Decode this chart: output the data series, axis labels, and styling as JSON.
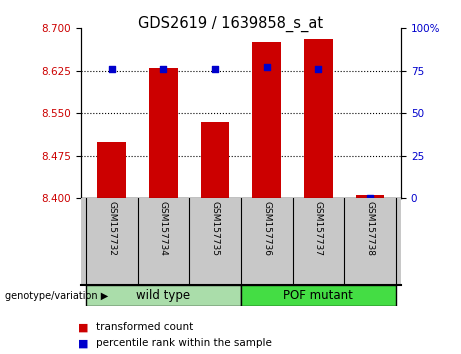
{
  "title": "GDS2619 / 1639858_s_at",
  "samples": [
    "GSM157732",
    "GSM157734",
    "GSM157735",
    "GSM157736",
    "GSM157737",
    "GSM157738"
  ],
  "transformed_count": [
    8.5,
    8.63,
    8.535,
    8.675,
    8.682,
    8.405
  ],
  "percentile_rank": [
    76,
    76,
    76,
    77,
    76,
    0
  ],
  "bar_color": "#cc0000",
  "dot_color": "#0000cc",
  "bar_bottom": 8.4,
  "ylim_left": [
    8.4,
    8.7
  ],
  "ylim_right": [
    0,
    100
  ],
  "yticks_left": [
    8.4,
    8.475,
    8.55,
    8.625,
    8.7
  ],
  "yticks_right": [
    0,
    25,
    50,
    75,
    100
  ],
  "grid_values": [
    8.475,
    8.55,
    8.625
  ],
  "tick_label_color_left": "#cc0000",
  "tick_label_color_right": "#0000cc",
  "bar_width": 0.55,
  "label_bg": "#c8c8c8",
  "wild_color": "#aaddaa",
  "pof_color": "#44dd44",
  "fig_bg": "#ffffff"
}
